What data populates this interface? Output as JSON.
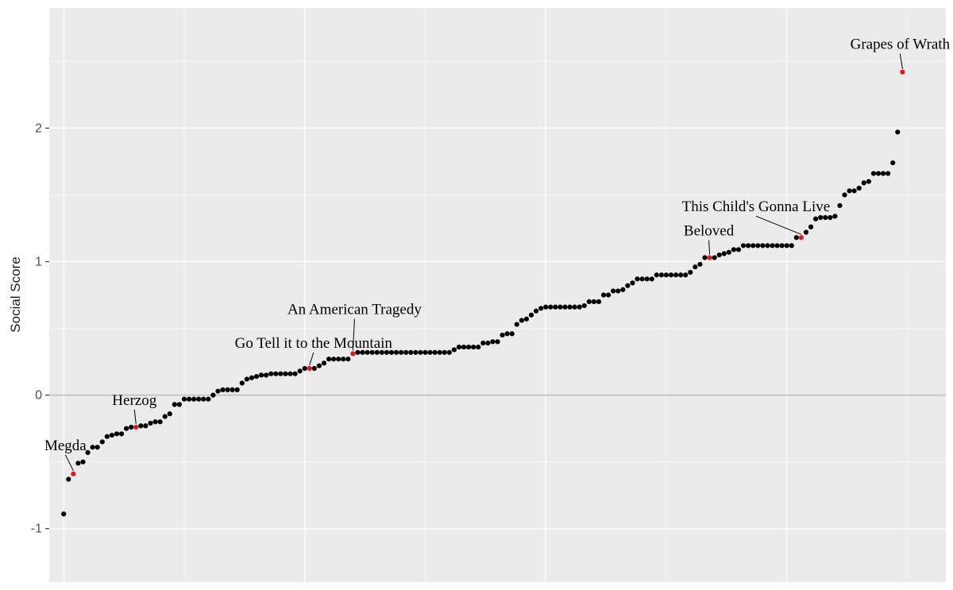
{
  "chart_data": {
    "type": "scatter",
    "title": "",
    "xlabel": "",
    "ylabel": "Social Score",
    "ylim": [
      -1.4,
      2.9
    ],
    "y_ticks": [
      -1,
      0,
      1,
      2
    ],
    "y_tick_labels": [
      "-1",
      "0",
      "1",
      "2"
    ],
    "x_ticks": [
      -50,
      0,
      50,
      100,
      150,
      200
    ],
    "x_tick_labels": [],
    "grid": true,
    "reference_line_y": 0,
    "values": [
      -0.89,
      -0.63,
      -0.59,
      -0.51,
      -0.5,
      -0.43,
      -0.39,
      -0.39,
      -0.35,
      -0.31,
      -0.3,
      -0.29,
      -0.29,
      -0.25,
      -0.24,
      -0.24,
      -0.23,
      -0.23,
      -0.21,
      -0.2,
      -0.2,
      -0.16,
      -0.14,
      -0.07,
      -0.07,
      -0.03,
      -0.03,
      -0.03,
      -0.03,
      -0.03,
      -0.03,
      0.0,
      0.03,
      0.04,
      0.04,
      0.04,
      0.04,
      0.09,
      0.12,
      0.13,
      0.14,
      0.15,
      0.15,
      0.16,
      0.16,
      0.16,
      0.16,
      0.16,
      0.16,
      0.18,
      0.2,
      0.2,
      0.2,
      0.22,
      0.24,
      0.27,
      0.27,
      0.27,
      0.27,
      0.27,
      0.31,
      0.32,
      0.32,
      0.32,
      0.32,
      0.32,
      0.32,
      0.32,
      0.32,
      0.32,
      0.32,
      0.32,
      0.32,
      0.32,
      0.32,
      0.32,
      0.32,
      0.32,
      0.32,
      0.32,
      0.32,
      0.34,
      0.36,
      0.36,
      0.36,
      0.36,
      0.36,
      0.39,
      0.39,
      0.4,
      0.4,
      0.45,
      0.46,
      0.46,
      0.53,
      0.56,
      0.57,
      0.6,
      0.63,
      0.65,
      0.66,
      0.66,
      0.66,
      0.66,
      0.66,
      0.66,
      0.66,
      0.66,
      0.67,
      0.7,
      0.7,
      0.7,
      0.75,
      0.75,
      0.78,
      0.78,
      0.79,
      0.82,
      0.84,
      0.87,
      0.87,
      0.87,
      0.87,
      0.9,
      0.9,
      0.9,
      0.9,
      0.9,
      0.9,
      0.9,
      0.92,
      0.96,
      0.98,
      1.03,
      1.03,
      1.03,
      1.05,
      1.06,
      1.07,
      1.09,
      1.09,
      1.12,
      1.12,
      1.12,
      1.12,
      1.12,
      1.12,
      1.12,
      1.12,
      1.12,
      1.12,
      1.12,
      1.18,
      1.18,
      1.22,
      1.26,
      1.32,
      1.33,
      1.33,
      1.33,
      1.34,
      1.42,
      1.5,
      1.53,
      1.53,
      1.55,
      1.59,
      1.6,
      1.66,
      1.66,
      1.66,
      1.66,
      1.74,
      1.97,
      2.42
    ],
    "highlighted": [
      {
        "index": 2,
        "label": "Megda"
      },
      {
        "index": 15,
        "label": "Herzog"
      },
      {
        "index": 51,
        "label": "Go Tell it to the Mountain"
      },
      {
        "index": 60,
        "label": "An American Tragedy"
      },
      {
        "index": 134,
        "label": "Beloved"
      },
      {
        "index": 153,
        "label": "This Child's Gonna Live"
      },
      {
        "index": 174,
        "label": "Grapes of Wrath"
      }
    ],
    "point_color": "#000000",
    "highlight_color": "#e31a1c"
  },
  "style": {
    "panel_background": "#ebebeb",
    "grid_major": "#ffffff",
    "grid_minor": "#f5f5f5",
    "zero_line": "#c6c6c6",
    "axis_text": "#4d4d4d"
  }
}
